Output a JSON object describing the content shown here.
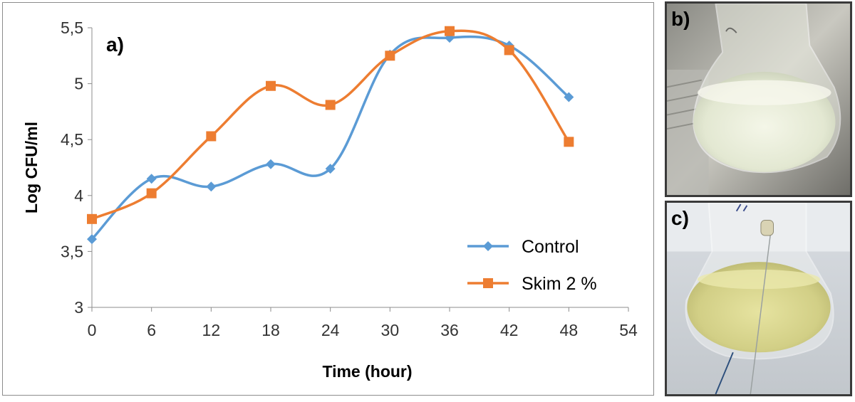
{
  "chart_data": {
    "type": "line",
    "panel_label": "a)",
    "xlabel": "Time (hour)",
    "ylabel": "Log CFU/ml",
    "xlim": [
      0,
      54
    ],
    "ylim": [
      3,
      5.5
    ],
    "x_ticks": [
      0,
      6,
      12,
      18,
      24,
      30,
      36,
      42,
      48,
      54
    ],
    "x_tick_labels": [
      "0",
      "6",
      "12",
      "18",
      "24",
      "30",
      "36",
      "42",
      "48",
      "54"
    ],
    "y_ticks": [
      3,
      3.5,
      4,
      4.5,
      5,
      5.5
    ],
    "y_tick_labels": [
      "3",
      "3,5",
      "4",
      "4,5",
      "5",
      "5,5"
    ],
    "grid": false,
    "legend_position": "bottom-right",
    "smooth_lines": true,
    "series": [
      {
        "name": "Control",
        "color": "#5B9BD5",
        "marker": "diamond",
        "x": [
          0,
          6,
          12,
          18,
          24,
          30,
          36,
          42,
          48
        ],
        "y": [
          3.61,
          4.15,
          4.08,
          4.28,
          4.24,
          5.26,
          5.41,
          5.34,
          4.88
        ]
      },
      {
        "name": "Skim 2 %",
        "color": "#ED7D31",
        "marker": "square",
        "x": [
          0,
          6,
          12,
          18,
          24,
          30,
          36,
          42,
          48
        ],
        "y": [
          3.79,
          4.02,
          4.53,
          4.98,
          4.81,
          5.25,
          5.47,
          5.3,
          4.48
        ]
      }
    ]
  },
  "photos": {
    "b": {
      "label": "b)",
      "icon": "flask-photo-milky"
    },
    "c": {
      "label": "c)",
      "icon": "flask-photo-yellow"
    }
  }
}
